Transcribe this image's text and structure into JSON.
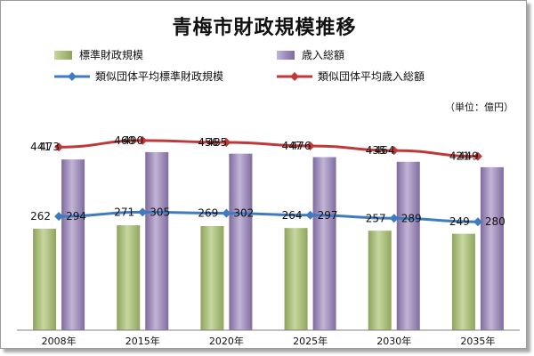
{
  "title": "青梅市財政規模推移",
  "unit_label": "（単位：億円）",
  "colors": {
    "bar1": "#a9bf7a",
    "bar2": "#9f8bbd",
    "line1": "#3f7bbf",
    "line2": "#c0393a"
  },
  "legend": {
    "bar1": "標準財政規模",
    "bar2": "歳入総額",
    "line1": "類似団体平均標準財政規模",
    "line2": "類似団体平均歳入総額"
  },
  "chart_data": {
    "type": "bar",
    "categories": [
      "2008年",
      "2015年",
      "2020年",
      "2025年",
      "2030年",
      "2035年"
    ],
    "series": [
      {
        "name": "標準財政規模",
        "kind": "bar",
        "values": [
          262,
          271,
          269,
          264,
          257,
          249
        ]
      },
      {
        "name": "歳入総額",
        "kind": "bar",
        "values": [
          441,
          460,
          456,
          447,
          435,
          421
        ]
      },
      {
        "name": "類似団体平均標準財政規模",
        "kind": "line",
        "values": [
          294,
          305,
          302,
          297,
          289,
          280
        ]
      },
      {
        "name": "類似団体平均歳入総額",
        "kind": "line",
        "values": [
          473,
          490,
          485,
          476,
          464,
          449
        ]
      }
    ],
    "ylim": [
      0,
      600
    ],
    "grid": false,
    "legend_position": "top"
  }
}
